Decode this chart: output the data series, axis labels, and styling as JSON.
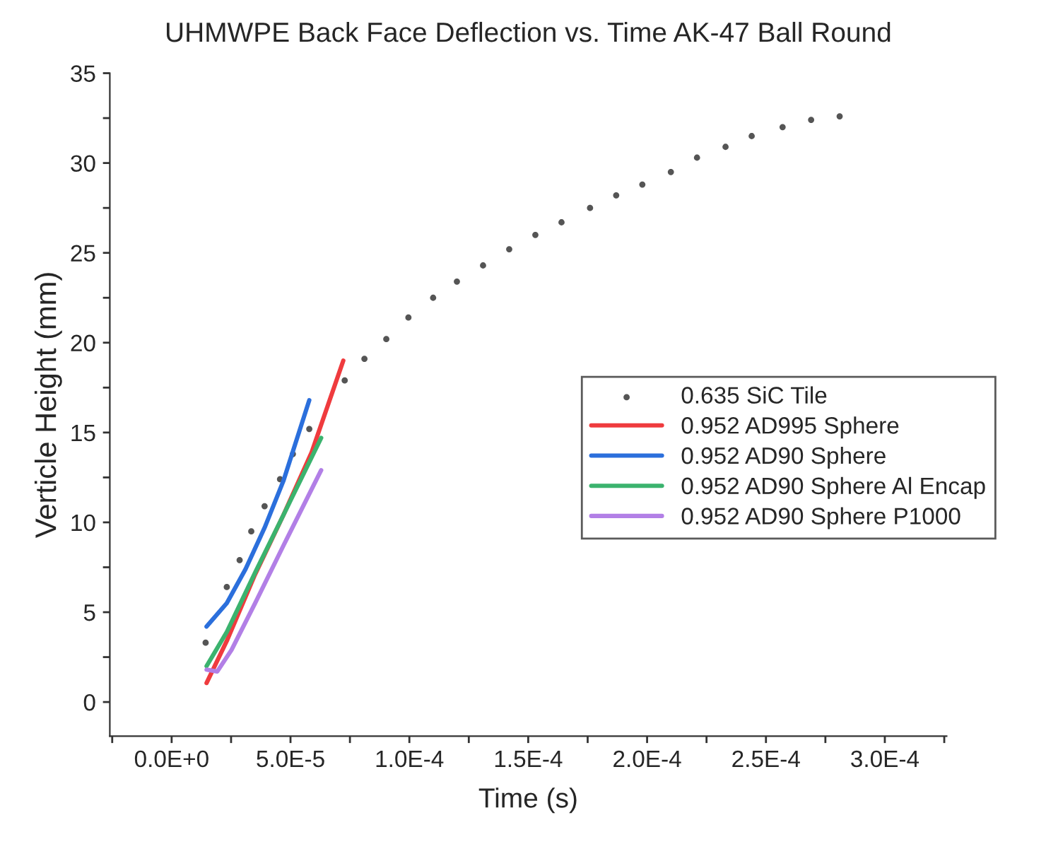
{
  "chart_data": {
    "type": "line",
    "title": "UHMWPE Back Face Deflection vs. Time AK-47 Ball Round",
    "xlabel": "Time (s)",
    "ylabel": "Verticle Height (mm)",
    "xlim": [
      -2.6e-05,
      0.000326
    ],
    "ylim": [
      -1.9,
      35
    ],
    "xticks": [
      {
        "value": -2.5e-05,
        "label": null
      },
      {
        "value": 0,
        "label": "0.0E+0"
      },
      {
        "value": 2.5e-05,
        "label": null
      },
      {
        "value": 5e-05,
        "label": "5.0E-5"
      },
      {
        "value": 7.5e-05,
        "label": null
      },
      {
        "value": 0.0001,
        "label": "1.0E-4"
      },
      {
        "value": 0.000125,
        "label": null
      },
      {
        "value": 0.00015,
        "label": "1.5E-4"
      },
      {
        "value": 0.000175,
        "label": null
      },
      {
        "value": 0.0002,
        "label": "2.0E-4"
      },
      {
        "value": 0.000225,
        "label": null
      },
      {
        "value": 0.00025,
        "label": "2.5E-4"
      },
      {
        "value": 0.000275,
        "label": null
      },
      {
        "value": 0.0003,
        "label": "3.0E-4"
      },
      {
        "value": 0.000325,
        "label": null
      }
    ],
    "yticks": [
      0,
      {
        "value": 2.5,
        "label": null
      },
      5,
      {
        "value": 7.5,
        "label": null
      },
      10,
      {
        "value": 12.5,
        "label": null
      },
      15,
      {
        "value": 17.5,
        "label": null
      },
      20,
      {
        "value": 22.5,
        "label": null
      },
      25,
      {
        "value": 27.5,
        "label": null
      },
      30,
      {
        "value": 32.5,
        "label": null
      },
      35
    ],
    "grid": false,
    "legend": "right",
    "series": [
      {
        "name": "0.635 SiC Tile",
        "type": "scatter",
        "marker": "circle",
        "color": "#555555",
        "x": [
          1.43e-05,
          2.32e-05,
          2.86e-05,
          3.35e-05,
          3.91e-05,
          4.56e-05,
          5.1e-05,
          5.79e-05,
          7.28e-05,
          8.11e-05,
          9.03e-05,
          9.96e-05,
          0.00011,
          0.00012,
          0.000131,
          0.000142,
          0.000153,
          0.000164,
          0.000176,
          0.000187,
          0.000198,
          0.00021,
          0.000221,
          0.000233,
          0.000244,
          0.000257,
          0.000269,
          0.000281
        ],
        "values": [
          3.3,
          6.4,
          7.9,
          9.5,
          10.9,
          12.4,
          13.8,
          15.2,
          17.9,
          19.1,
          20.2,
          21.4,
          22.5,
          23.4,
          24.3,
          25.2,
          26.0,
          26.7,
          27.5,
          28.2,
          28.8,
          29.5,
          30.3,
          30.9,
          31.5,
          32.0,
          32.4,
          32.6
        ]
      },
      {
        "name": "0.952 AD995 Sphere",
        "color": "#ef3b3e",
        "line_style": "solid",
        "x": [
          1.47e-05,
          2.32e-05,
          3.51e-05,
          4.7e-05,
          5.89e-05,
          7.22e-05
        ],
        "values": [
          1.06,
          3.4,
          7.1,
          10.4,
          13.9,
          19.0
        ]
      },
      {
        "name": "0.952 AD90 Sphere",
        "color": "#2b6fdc",
        "line_style": "solid",
        "x": [
          1.47e-05,
          2.32e-05,
          3.11e-05,
          3.91e-05,
          4.7e-05,
          5.79e-05
        ],
        "values": [
          4.2,
          5.5,
          7.4,
          9.7,
          12.3,
          16.8
        ]
      },
      {
        "name": "0.952 AD90 Sphere Al Encap",
        "color": "#3bb36e",
        "line_style": "solid",
        "x": [
          1.47e-05,
          2.32e-05,
          3.51e-05,
          4.7e-05,
          6.29e-05
        ],
        "values": [
          2.0,
          3.9,
          7.2,
          10.4,
          14.7
        ]
      },
      {
        "name": "0.952 AD90 Sphere P1000",
        "color": "#b27fe6",
        "line_style": "solid",
        "x": [
          1.47e-05,
          1.92e-05,
          2.52e-05,
          3.51e-05,
          4.7e-05,
          6.29e-05
        ],
        "values": [
          1.8,
          1.7,
          2.9,
          5.5,
          8.7,
          12.9
        ]
      }
    ]
  }
}
